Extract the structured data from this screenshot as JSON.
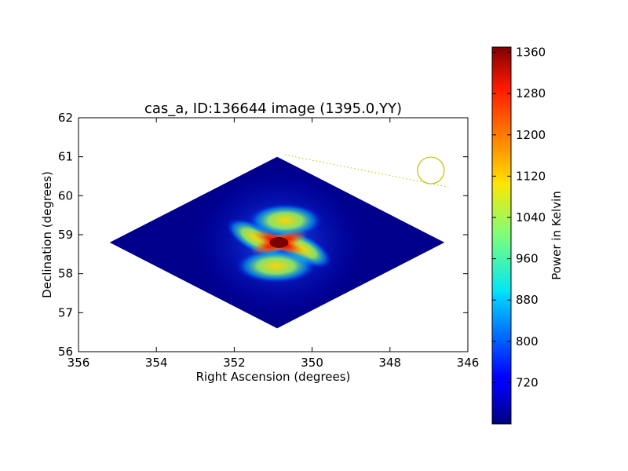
{
  "chart_data": {
    "type": "heatmap",
    "title": "cas_a, ID:136644 image (1395.0,YY)",
    "xlabel": "Right Ascension (degrees)",
    "ylabel": "Declination (degrees)",
    "xlim": [
      356,
      346
    ],
    "ylim": [
      56,
      62
    ],
    "x_ticks": [
      356,
      354,
      352,
      350,
      348,
      346
    ],
    "y_ticks": [
      56,
      57,
      58,
      59,
      60,
      61,
      62
    ],
    "x_tick_labels": [
      "356",
      "354",
      "352",
      "350",
      "348",
      "346"
    ],
    "y_tick_labels": [
      "56",
      "57",
      "58",
      "59",
      "60",
      "61",
      "62"
    ],
    "footprint_outline": [
      [
        355.2,
        58.8
      ],
      [
        350.9,
        61.0
      ],
      [
        346.6,
        58.8
      ],
      [
        350.9,
        56.6
      ]
    ],
    "source_peak": {
      "ra": 350.85,
      "dec": 58.8,
      "value": 1360
    },
    "background_value": 650,
    "source_circle": {
      "ra": 346.95,
      "dec": 60.65
    },
    "source_track": {
      "start": [
        350.7,
        61.05
      ],
      "end": [
        346.5,
        60.22
      ],
      "color": "#bfbf00"
    },
    "colorbar": {
      "label": "Power in Kelvin",
      "min": 640,
      "max": 1370,
      "ticks": [
        720,
        800,
        880,
        960,
        1040,
        1120,
        1200,
        1280,
        1360
      ],
      "tick_labels": [
        "720",
        "800",
        "880",
        "960",
        "1040",
        "1120",
        "1200",
        "1280",
        "1360"
      ],
      "colormap": "jet"
    }
  }
}
